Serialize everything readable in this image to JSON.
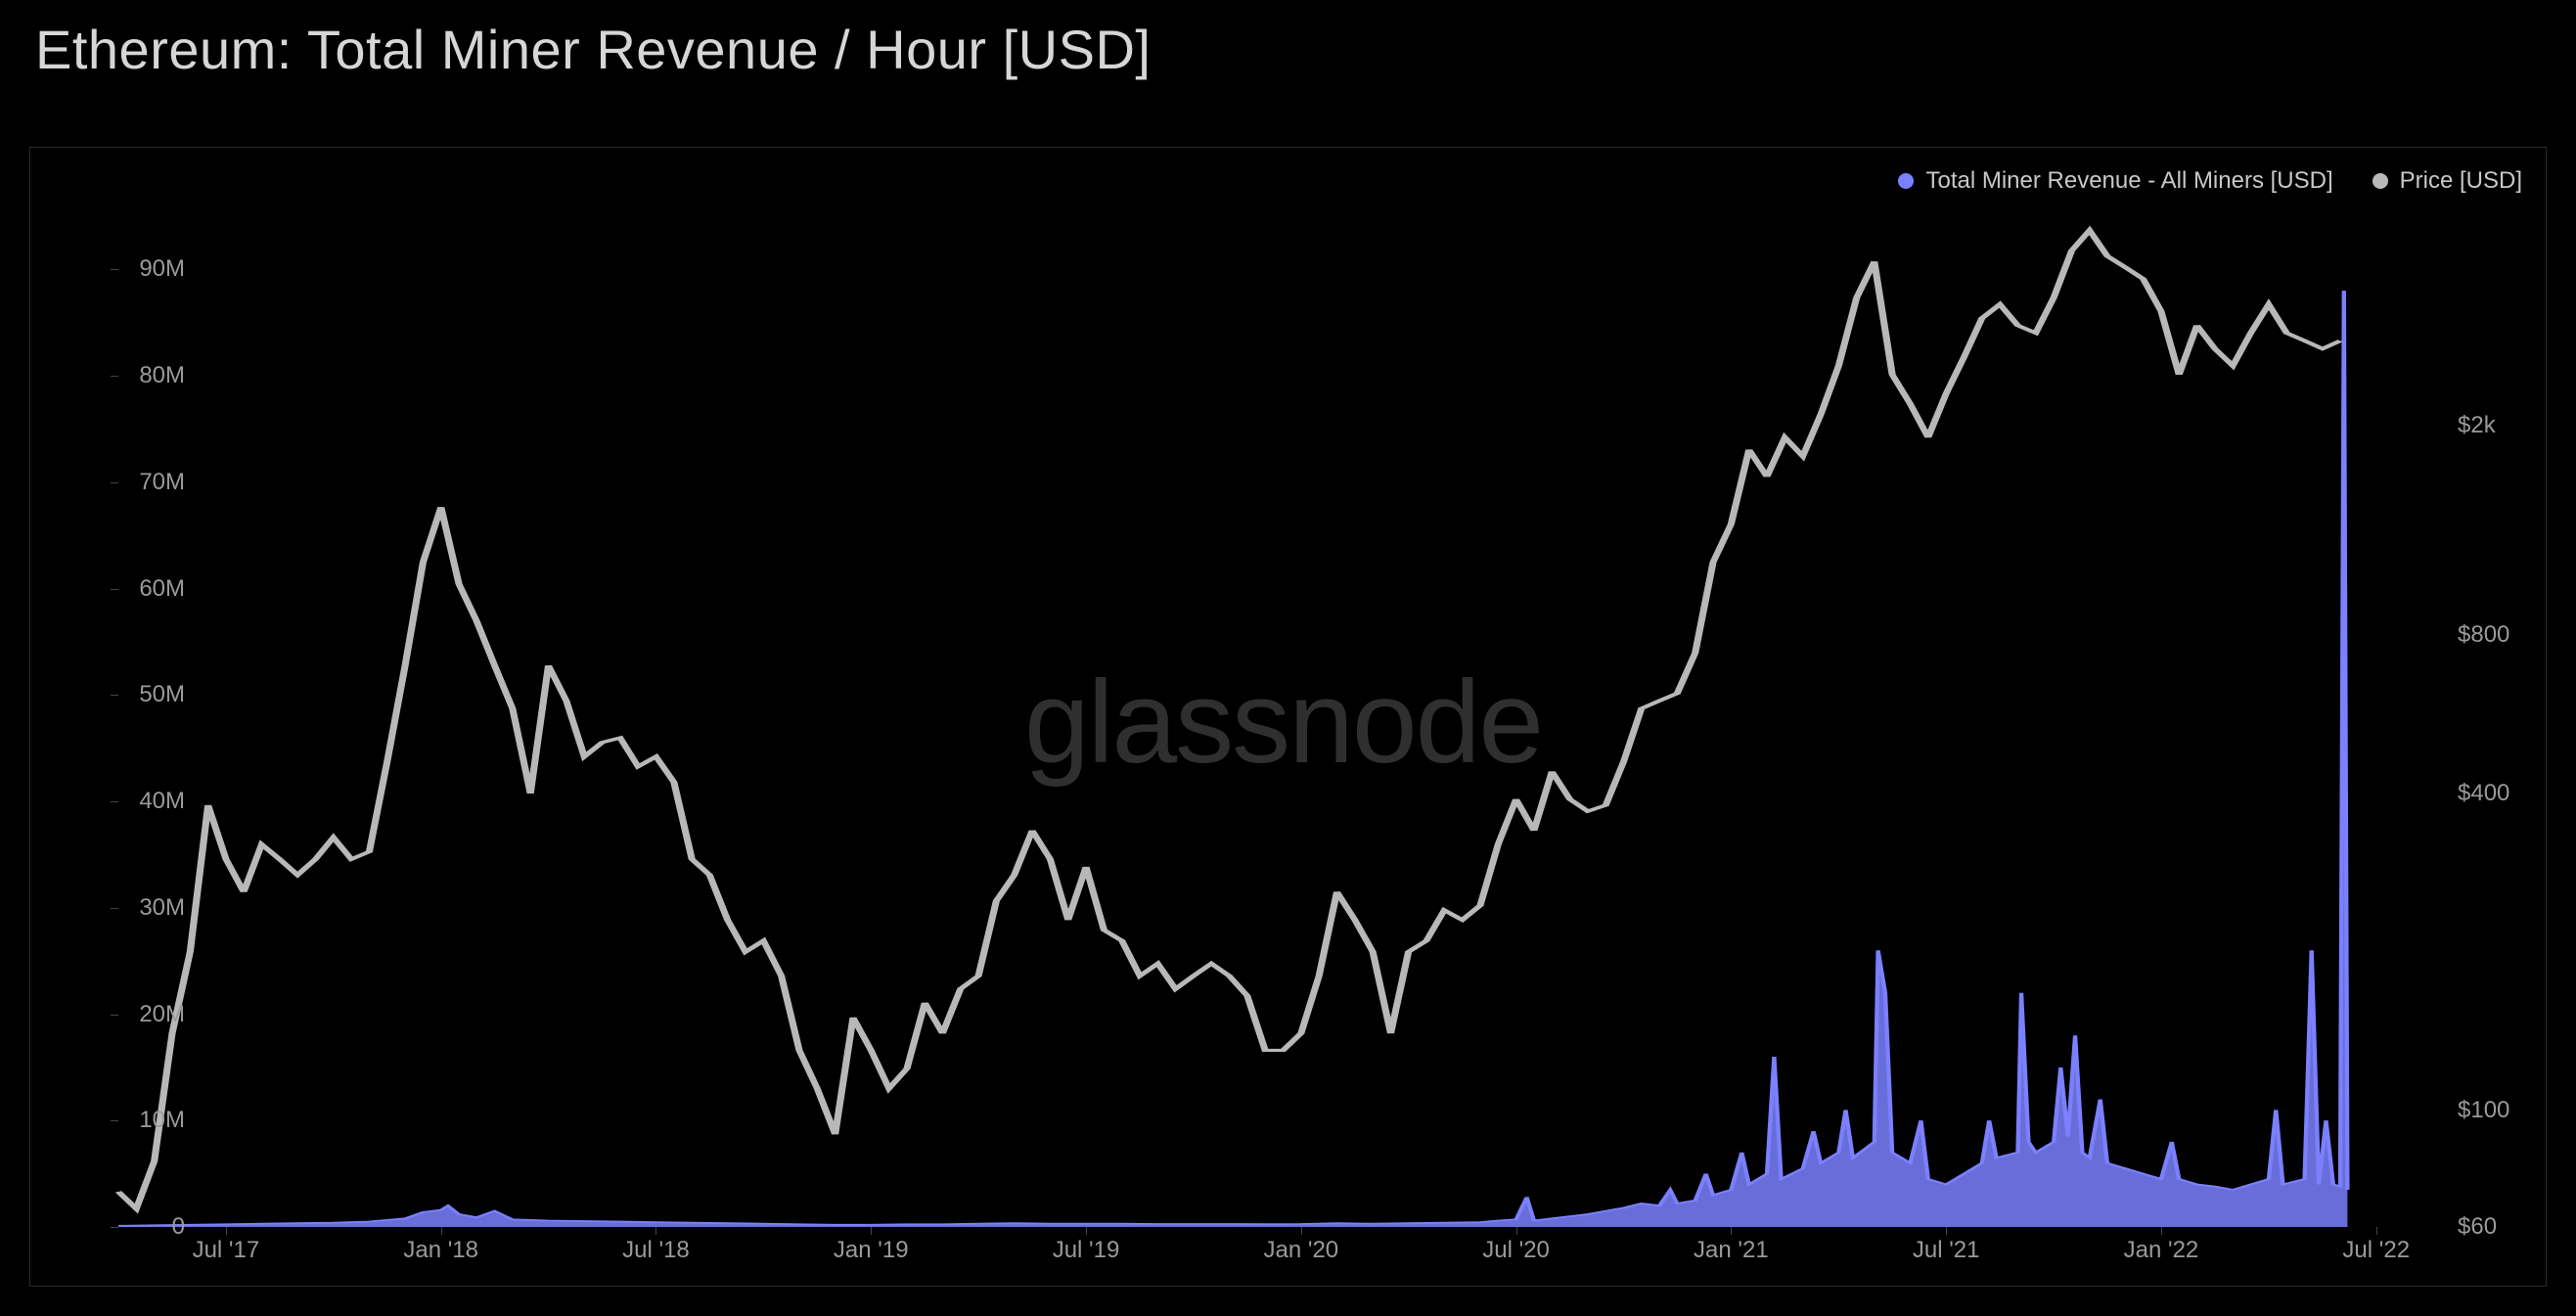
{
  "title": "Ethereum: Total Miner Revenue / Hour [USD]",
  "watermark": "glassnode",
  "legend": {
    "series1": {
      "label": "Total Miner Revenue - All Miners [USD]",
      "color": "#7b80ff"
    },
    "series2": {
      "label": "Price [USD]",
      "color": "#b8b8b8"
    }
  },
  "chart": {
    "background_color": "#000000",
    "border_color": "#2a2a2a",
    "tick_color": "#444444",
    "label_color": "#9a9a9a",
    "label_fontsize": 24,
    "title_color": "#d6d6d6",
    "title_fontsize": 56,
    "watermark_color": "#2f2f2f",
    "watermark_fontsize": 120,
    "x": {
      "domain_start": 0,
      "domain_end": 65,
      "ticks": [
        {
          "pos": 3,
          "label": "Jul '17"
        },
        {
          "pos": 9,
          "label": "Jan '18"
        },
        {
          "pos": 15,
          "label": "Jul '18"
        },
        {
          "pos": 21,
          "label": "Jan '19"
        },
        {
          "pos": 27,
          "label": "Jul '19"
        },
        {
          "pos": 33,
          "label": "Jan '20"
        },
        {
          "pos": 39,
          "label": "Jul '20"
        },
        {
          "pos": 45,
          "label": "Jan '21"
        },
        {
          "pos": 51,
          "label": "Jul '21"
        },
        {
          "pos": 57,
          "label": "Jan '22"
        },
        {
          "pos": 63,
          "label": "Jul '22"
        }
      ]
    },
    "y_left": {
      "scale": "linear",
      "min": 0,
      "max": 95000000,
      "ticks": [
        {
          "v": 0,
          "label": "0"
        },
        {
          "v": 10000000,
          "label": "10M"
        },
        {
          "v": 20000000,
          "label": "20M"
        },
        {
          "v": 30000000,
          "label": "30M"
        },
        {
          "v": 40000000,
          "label": "40M"
        },
        {
          "v": 50000000,
          "label": "50M"
        },
        {
          "v": 60000000,
          "label": "60M"
        },
        {
          "v": 70000000,
          "label": "70M"
        },
        {
          "v": 80000000,
          "label": "80M"
        },
        {
          "v": 90000000,
          "label": "90M"
        }
      ]
    },
    "y_right": {
      "scale": "log",
      "min": 60,
      "max": 5000,
      "ticks": [
        {
          "v": 60,
          "label": "$60"
        },
        {
          "v": 100,
          "label": "$100"
        },
        {
          "v": 400,
          "label": "$400"
        },
        {
          "v": 800,
          "label": "$800"
        },
        {
          "v": 2000,
          "label": "$2k"
        }
      ]
    },
    "price_series": {
      "color": "#b8b8b8",
      "stroke_width": 2,
      "data": [
        [
          0,
          70
        ],
        [
          0.5,
          65
        ],
        [
          1,
          80
        ],
        [
          1.5,
          140
        ],
        [
          2,
          200
        ],
        [
          2.5,
          380
        ],
        [
          3,
          300
        ],
        [
          3.5,
          260
        ],
        [
          4,
          320
        ],
        [
          4.5,
          300
        ],
        [
          5,
          280
        ],
        [
          5.5,
          300
        ],
        [
          6,
          330
        ],
        [
          6.5,
          300
        ],
        [
          7,
          310
        ],
        [
          7.5,
          460
        ],
        [
          8,
          700
        ],
        [
          8.5,
          1100
        ],
        [
          9,
          1400
        ],
        [
          9.5,
          1000
        ],
        [
          10,
          850
        ],
        [
          10.5,
          700
        ],
        [
          11,
          580
        ],
        [
          11.5,
          400
        ],
        [
          12,
          700
        ],
        [
          12.5,
          600
        ],
        [
          13,
          470
        ],
        [
          13.5,
          500
        ],
        [
          14,
          510
        ],
        [
          14.5,
          450
        ],
        [
          15,
          470
        ],
        [
          15.5,
          420
        ],
        [
          16,
          300
        ],
        [
          16.5,
          280
        ],
        [
          17,
          230
        ],
        [
          17.5,
          200
        ],
        [
          18,
          210
        ],
        [
          18.5,
          180
        ],
        [
          19,
          130
        ],
        [
          19.5,
          110
        ],
        [
          20,
          90
        ],
        [
          20.5,
          150
        ],
        [
          21,
          130
        ],
        [
          21.5,
          110
        ],
        [
          22,
          120
        ],
        [
          22.5,
          160
        ],
        [
          23,
          140
        ],
        [
          23.5,
          170
        ],
        [
          24,
          180
        ],
        [
          24.5,
          250
        ],
        [
          25,
          280
        ],
        [
          25.5,
          340
        ],
        [
          26,
          300
        ],
        [
          26.5,
          230
        ],
        [
          27,
          290
        ],
        [
          27.5,
          220
        ],
        [
          28,
          210
        ],
        [
          28.5,
          180
        ],
        [
          29,
          190
        ],
        [
          29.5,
          170
        ],
        [
          30,
          180
        ],
        [
          30.5,
          190
        ],
        [
          31,
          180
        ],
        [
          31.5,
          165
        ],
        [
          32,
          130
        ],
        [
          32.5,
          130
        ],
        [
          33,
          140
        ],
        [
          33.5,
          180
        ],
        [
          34,
          260
        ],
        [
          34.5,
          230
        ],
        [
          35,
          200
        ],
        [
          35.5,
          140
        ],
        [
          36,
          200
        ],
        [
          36.5,
          210
        ],
        [
          37,
          240
        ],
        [
          37.5,
          230
        ],
        [
          38,
          245
        ],
        [
          38.5,
          320
        ],
        [
          39,
          390
        ],
        [
          39.5,
          340
        ],
        [
          40,
          440
        ],
        [
          40.5,
          390
        ],
        [
          41,
          370
        ],
        [
          41.5,
          380
        ],
        [
          42,
          460
        ],
        [
          42.5,
          580
        ],
        [
          43,
          600
        ],
        [
          43.5,
          620
        ],
        [
          44,
          740
        ],
        [
          44.5,
          1100
        ],
        [
          45,
          1300
        ],
        [
          45.5,
          1800
        ],
        [
          46,
          1600
        ],
        [
          46.5,
          1900
        ],
        [
          47,
          1750
        ],
        [
          47.5,
          2100
        ],
        [
          48,
          2600
        ],
        [
          48.5,
          3500
        ],
        [
          49,
          4100
        ],
        [
          49.5,
          2500
        ],
        [
          50,
          2200
        ],
        [
          50.5,
          1900
        ],
        [
          51,
          2300
        ],
        [
          51.5,
          2700
        ],
        [
          52,
          3200
        ],
        [
          52.5,
          3400
        ],
        [
          53,
          3100
        ],
        [
          53.5,
          3000
        ],
        [
          54,
          3500
        ],
        [
          54.5,
          4300
        ],
        [
          55,
          4700
        ],
        [
          55.5,
          4200
        ],
        [
          56,
          4000
        ],
        [
          56.5,
          3800
        ],
        [
          57,
          3300
        ],
        [
          57.5,
          2500
        ],
        [
          58,
          3100
        ],
        [
          58.5,
          2800
        ],
        [
          59,
          2600
        ],
        [
          59.5,
          3000
        ],
        [
          60,
          3400
        ],
        [
          60.5,
          3000
        ],
        [
          61,
          2900
        ],
        [
          61.5,
          2800
        ],
        [
          62,
          2900
        ]
      ]
    },
    "revenue_series": {
      "color": "#7b80ff",
      "fill_color": "#7b80ff",
      "fill_opacity": 0.85,
      "stroke_width": 1.2,
      "data": [
        [
          0,
          100000
        ],
        [
          1,
          150000
        ],
        [
          2,
          200000
        ],
        [
          3,
          250000
        ],
        [
          4,
          300000
        ],
        [
          5,
          350000
        ],
        [
          6,
          400000
        ],
        [
          7,
          500000
        ],
        [
          8,
          800000
        ],
        [
          8.5,
          1400000
        ],
        [
          9,
          1600000
        ],
        [
          9.2,
          2000000
        ],
        [
          9.5,
          1200000
        ],
        [
          10,
          900000
        ],
        [
          10.5,
          1500000
        ],
        [
          11,
          700000
        ],
        [
          12,
          600000
        ],
        [
          13,
          550000
        ],
        [
          14,
          500000
        ],
        [
          15,
          450000
        ],
        [
          16,
          400000
        ],
        [
          17,
          350000
        ],
        [
          18,
          300000
        ],
        [
          19,
          250000
        ],
        [
          20,
          200000
        ],
        [
          21,
          200000
        ],
        [
          22,
          250000
        ],
        [
          23,
          250000
        ],
        [
          24,
          300000
        ],
        [
          25,
          350000
        ],
        [
          26,
          300000
        ],
        [
          27,
          300000
        ],
        [
          28,
          300000
        ],
        [
          29,
          280000
        ],
        [
          30,
          280000
        ],
        [
          31,
          280000
        ],
        [
          32,
          260000
        ],
        [
          33,
          280000
        ],
        [
          34,
          350000
        ],
        [
          35,
          300000
        ],
        [
          36,
          350000
        ],
        [
          37,
          400000
        ],
        [
          38,
          450000
        ],
        [
          38.5,
          600000
        ],
        [
          39,
          700000
        ],
        [
          39.3,
          2800000
        ],
        [
          39.5,
          600000
        ],
        [
          40,
          800000
        ],
        [
          40.5,
          1000000
        ],
        [
          41,
          1200000
        ],
        [
          41.5,
          1500000
        ],
        [
          42,
          1800000
        ],
        [
          42.5,
          2200000
        ],
        [
          43,
          2000000
        ],
        [
          43.3,
          3500000
        ],
        [
          43.5,
          2200000
        ],
        [
          44,
          2500000
        ],
        [
          44.3,
          5000000
        ],
        [
          44.5,
          3000000
        ],
        [
          45,
          3500000
        ],
        [
          45.3,
          7000000
        ],
        [
          45.5,
          4000000
        ],
        [
          46,
          5000000
        ],
        [
          46.2,
          16000000
        ],
        [
          46.4,
          4500000
        ],
        [
          47,
          5500000
        ],
        [
          47.3,
          9000000
        ],
        [
          47.5,
          6000000
        ],
        [
          48,
          7000000
        ],
        [
          48.2,
          11000000
        ],
        [
          48.4,
          6500000
        ],
        [
          49,
          8000000
        ],
        [
          49.1,
          26000000
        ],
        [
          49.3,
          22000000
        ],
        [
          49.5,
          7000000
        ],
        [
          50,
          6000000
        ],
        [
          50.3,
          10000000
        ],
        [
          50.5,
          4500000
        ],
        [
          51,
          4000000
        ],
        [
          51.5,
          5000000
        ],
        [
          52,
          6000000
        ],
        [
          52.2,
          10000000
        ],
        [
          52.4,
          6500000
        ],
        [
          53,
          7000000
        ],
        [
          53.1,
          22000000
        ],
        [
          53.3,
          8000000
        ],
        [
          53.5,
          7000000
        ],
        [
          54,
          8000000
        ],
        [
          54.2,
          15000000
        ],
        [
          54.4,
          8500000
        ],
        [
          54.6,
          18000000
        ],
        [
          54.8,
          7000000
        ],
        [
          55,
          6500000
        ],
        [
          55.3,
          12000000
        ],
        [
          55.5,
          6000000
        ],
        [
          56,
          5500000
        ],
        [
          56.5,
          5000000
        ],
        [
          57,
          4500000
        ],
        [
          57.3,
          8000000
        ],
        [
          57.5,
          4500000
        ],
        [
          58,
          4000000
        ],
        [
          58.5,
          3800000
        ],
        [
          59,
          3500000
        ],
        [
          59.5,
          4000000
        ],
        [
          60,
          4500000
        ],
        [
          60.2,
          11000000
        ],
        [
          60.4,
          4000000
        ],
        [
          61,
          4500000
        ],
        [
          61.2,
          26000000
        ],
        [
          61.4,
          4000000
        ],
        [
          61.6,
          10000000
        ],
        [
          61.8,
          4000000
        ],
        [
          62,
          3800000
        ],
        [
          62.1,
          88000000
        ],
        [
          62.2,
          3500000
        ]
      ]
    }
  }
}
